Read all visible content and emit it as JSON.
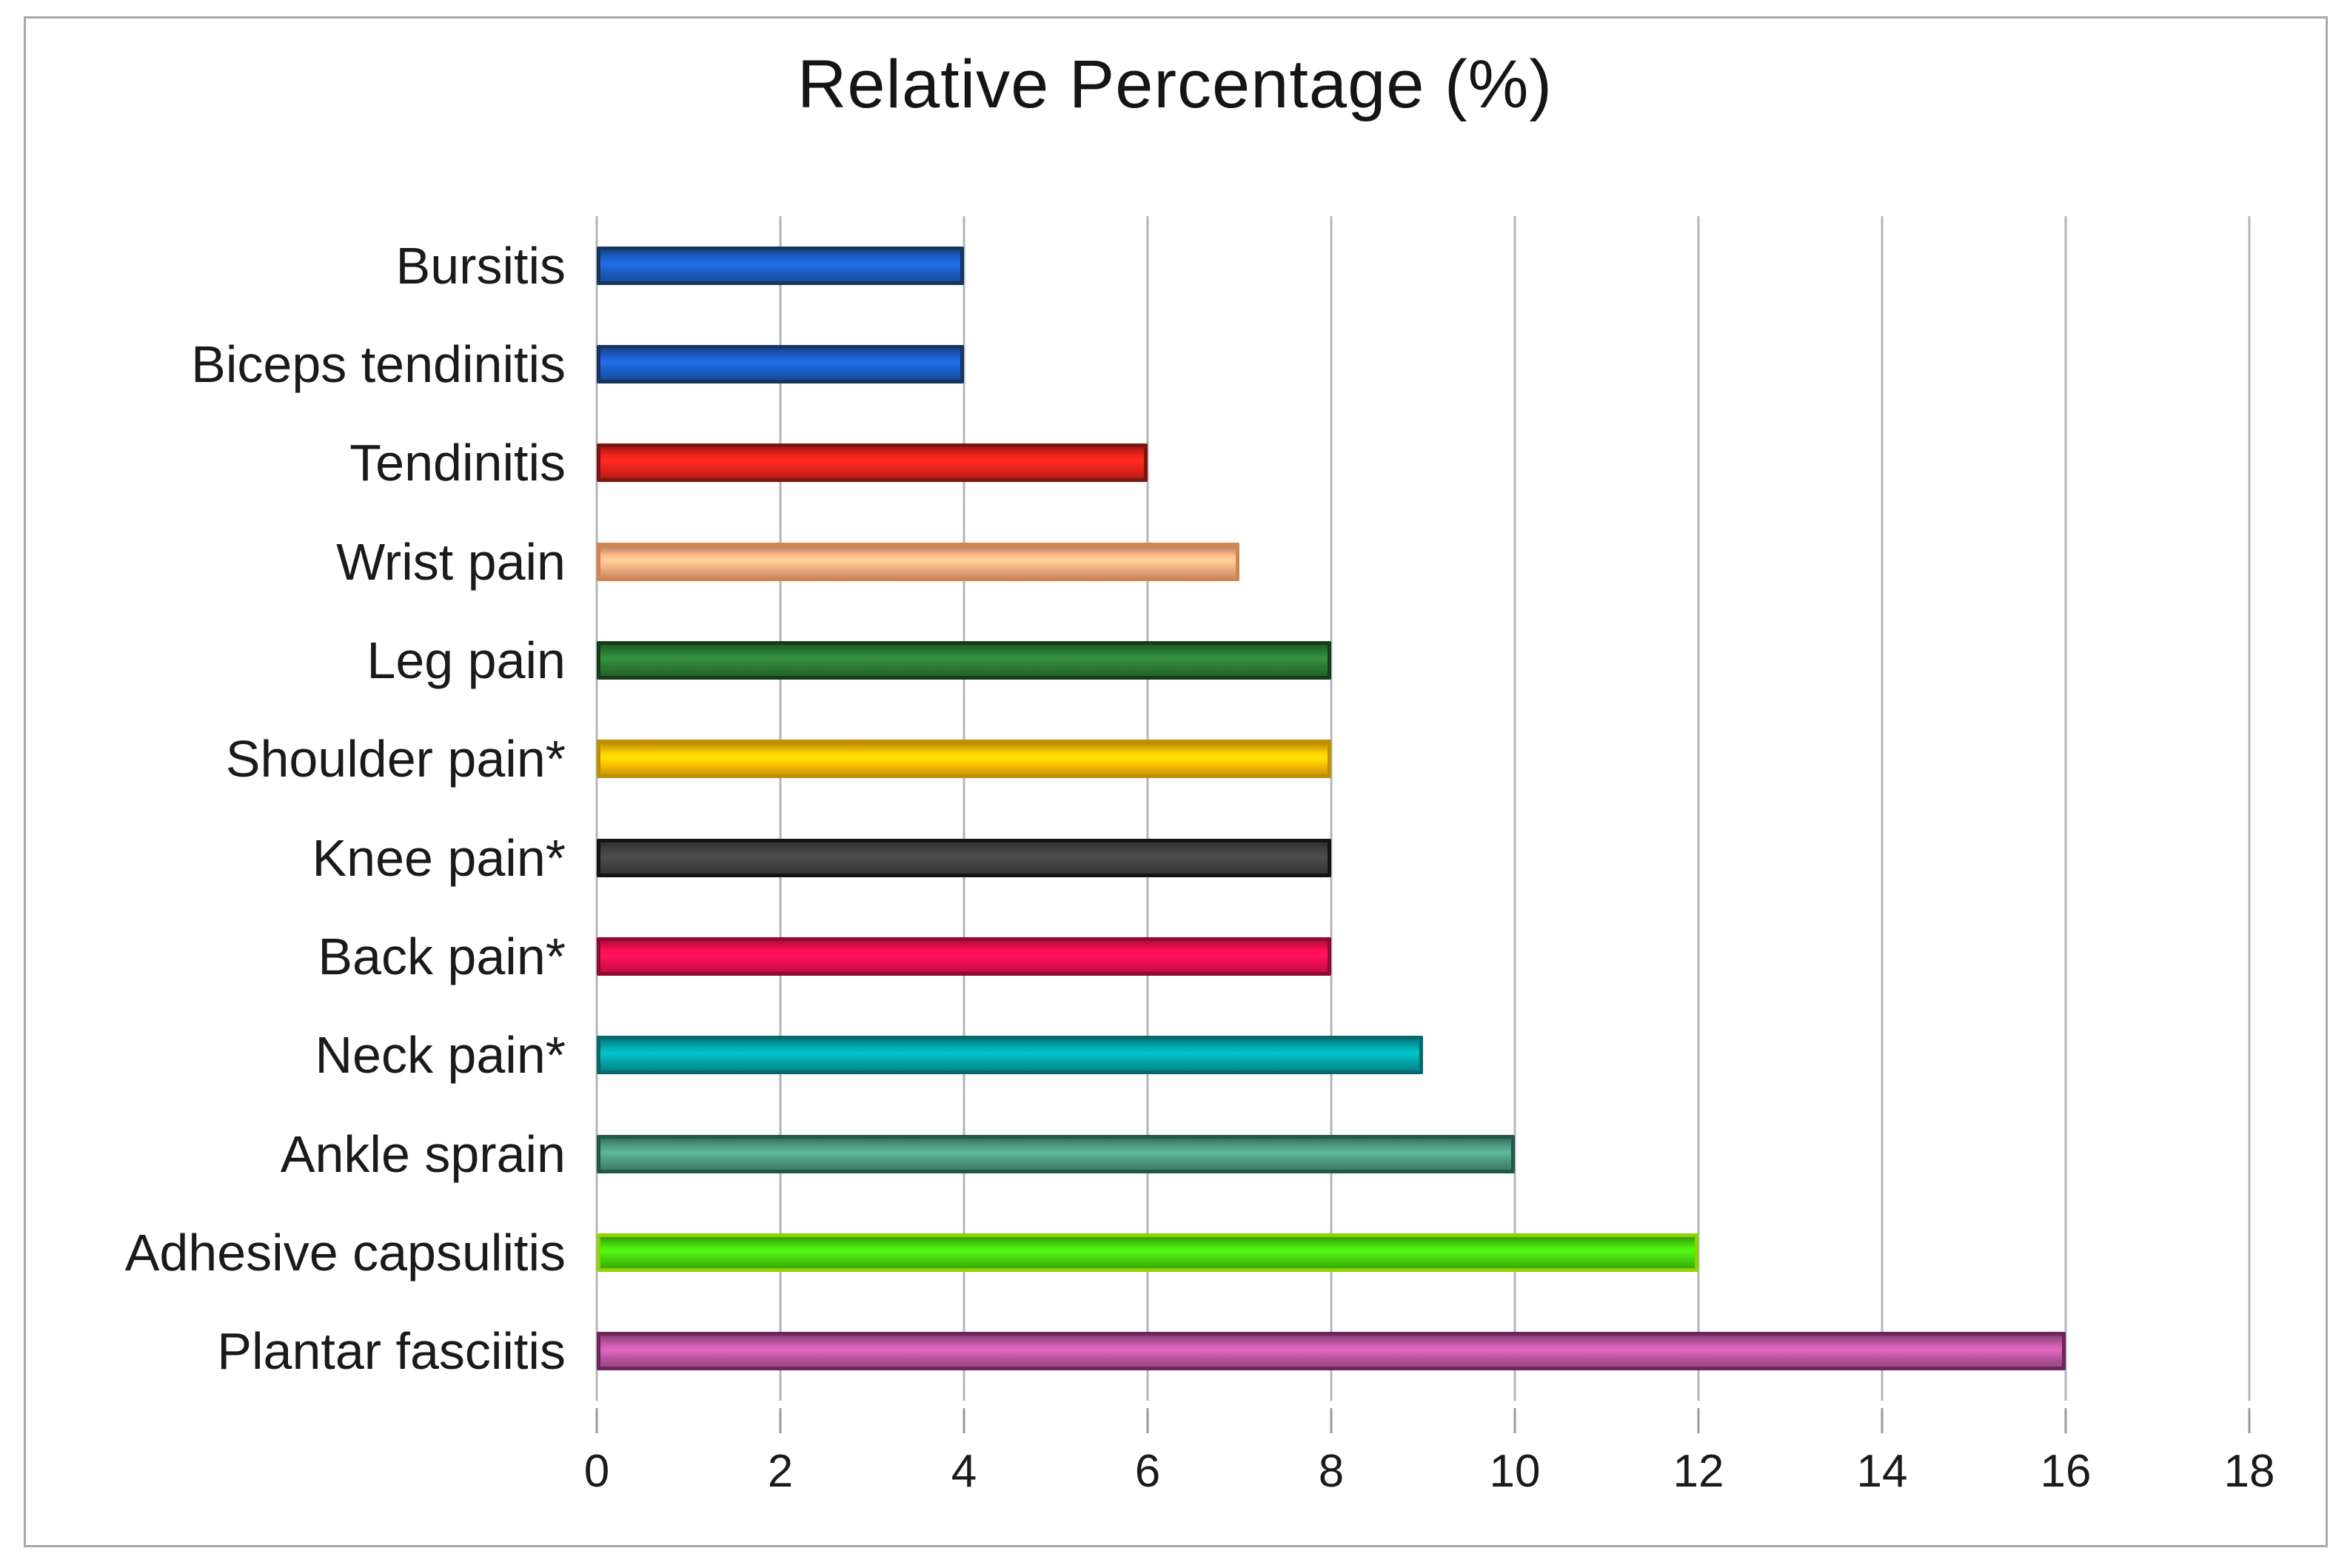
{
  "window": {
    "frame_border_color": "#a9a9a9",
    "background_color": "#ffffff"
  },
  "chart_data": {
    "type": "bar",
    "orientation": "horizontal",
    "title": "Relative Percentage (%)",
    "categories": [
      "Bursitis",
      "Biceps tendinitis",
      "Tendinitis",
      "Wrist pain",
      "Leg pain",
      "Shoulder pain*",
      "Knee pain*",
      "Back pain*",
      "Neck pain*",
      "Ankle sprain",
      "Adhesive capsulitis",
      "Plantar fasciitis"
    ],
    "values": [
      4,
      4,
      6,
      7,
      8,
      8,
      8,
      8,
      9,
      10,
      12,
      16
    ],
    "bar_fill_colors": [
      "#1c5ec6",
      "#1c5ec6",
      "#e7241c",
      "#f6b183",
      "#2c7c34",
      "#fec103",
      "#424242",
      "#f00f52",
      "#03a8ad",
      "#4f9c82",
      "#46d60e",
      "#bf58a4"
    ],
    "bar_border_colors": [
      "#16365f",
      "#16365f",
      "#7d1411",
      "#d2834e",
      "#153c1b",
      "#c08f00",
      "#141414",
      "#8e0a33",
      "#046a6e",
      "#20584a",
      "#8ed402",
      "#6e255c"
    ],
    "xlabel": "",
    "ylabel": "",
    "xlim": [
      0,
      18
    ],
    "x_ticks": [
      0,
      2,
      4,
      6,
      8,
      10,
      12,
      14,
      16,
      18
    ],
    "grid": "vertical-gridlines-on",
    "gridline_color": "#b3b6ba",
    "tick_mark_color": "#9a9a9a",
    "legend": "none",
    "text_color": "#1a1a1a"
  }
}
